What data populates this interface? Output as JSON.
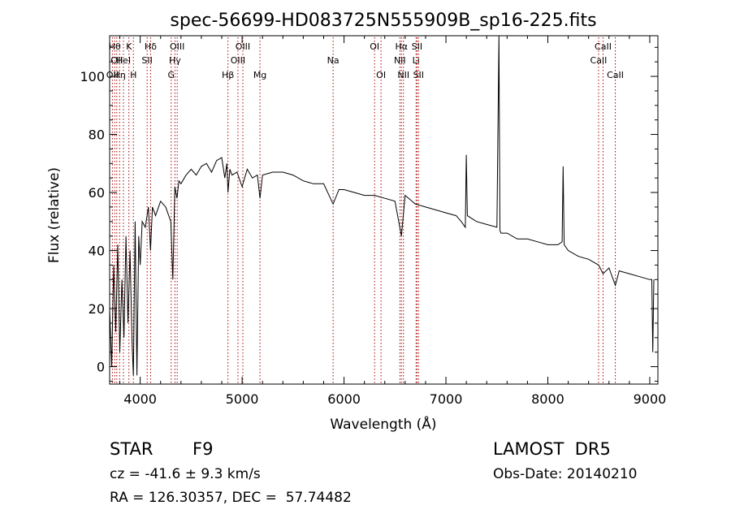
{
  "chart_data": {
    "type": "line",
    "title": "spec-56699-HD083725N555909B_sp16-225.fits",
    "xlabel": "Wavelength (Å)",
    "ylabel": "Flux (relative)",
    "xlim": [
      3700,
      9080
    ],
    "ylim": [
      -6,
      114
    ],
    "xticks": [
      4000,
      5000,
      6000,
      7000,
      8000,
      9000
    ],
    "yticks": [
      0,
      20,
      40,
      60,
      80,
      100
    ],
    "grid": false,
    "series": [
      {
        "x": [
          3700,
          3720,
          3740,
          3760,
          3780,
          3800,
          3820,
          3840,
          3860,
          3880,
          3900,
          3920,
          3933,
          3950,
          3968,
          3985,
          4000,
          4020,
          4050,
          4080,
          4101,
          4120,
          4150,
          4200,
          4250,
          4300,
          4320,
          4340,
          4361,
          4380,
          4400,
          4450,
          4500,
          4550,
          4600,
          4650,
          4700,
          4750,
          4800,
          4830,
          4850,
          4861,
          4880,
          4900,
          4950,
          5000,
          5050,
          5100,
          5150,
          5175,
          5200,
          5300,
          5400,
          5500,
          5600,
          5700,
          5800,
          5893,
          5950,
          6000,
          6100,
          6200,
          6300,
          6400,
          6500,
          6563,
          6600,
          6700,
          6800,
          6900,
          7000,
          7100,
          7150,
          7190,
          7200,
          7210,
          7300,
          7400,
          7500,
          7520,
          7530,
          7540,
          7600,
          7700,
          7800,
          7900,
          8000,
          8100,
          8140,
          8150,
          8160,
          8200,
          8300,
          8400,
          8498,
          8542,
          8600,
          8662,
          8700,
          8800,
          8900,
          9000,
          9020,
          9030,
          9040
        ],
        "y": [
          20,
          0,
          35,
          12,
          42,
          5,
          30,
          10,
          45,
          15,
          40,
          8,
          -3,
          50,
          -3,
          45,
          35,
          50,
          48,
          55,
          40,
          55,
          52,
          57,
          55,
          50,
          30,
          62,
          58,
          64,
          63,
          66,
          68,
          66,
          69,
          70,
          67,
          71,
          72,
          65,
          70,
          60,
          68,
          66,
          67,
          62,
          68,
          65,
          66,
          58,
          66,
          67,
          67,
          66,
          64,
          63,
          63,
          56,
          61,
          61,
          60,
          59,
          59,
          58,
          57,
          45,
          59,
          56,
          55,
          54,
          53,
          52,
          50,
          48,
          73,
          52,
          50,
          49,
          48,
          115,
          47,
          46,
          46,
          44,
          44,
          43,
          42,
          42,
          43,
          69,
          42,
          40,
          38,
          37,
          35,
          32,
          34,
          28,
          33,
          32,
          31,
          30,
          30,
          5,
          30
        ]
      }
    ],
    "lines": [
      {
        "x": 3750,
        "label": "Hθ",
        "row": 0
      },
      {
        "x": 3770,
        "label": "OII",
        "row": 1
      },
      {
        "x": 3727,
        "label": "OII",
        "row": 2
      },
      {
        "x": 3798,
        "label": "Hη",
        "row": 2
      },
      {
        "x": 3835,
        "label": "HeI",
        "row": 1
      },
      {
        "x": 3889,
        "label": "K",
        "row": 0
      },
      {
        "x": 3933,
        "label": "H",
        "row": 2
      },
      {
        "x": 4068,
        "label": "SII",
        "row": 1
      },
      {
        "x": 4102,
        "label": "Hδ",
        "row": 0
      },
      {
        "x": 4304,
        "label": "G",
        "row": 2
      },
      {
        "x": 4341,
        "label": "Hγ",
        "row": 1
      },
      {
        "x": 4363,
        "label": "OIII",
        "row": 0
      },
      {
        "x": 4861,
        "label": "Hβ",
        "row": 2
      },
      {
        "x": 4959,
        "label": "OIII",
        "row": 1
      },
      {
        "x": 5007,
        "label": "OIII",
        "row": 0
      },
      {
        "x": 5175,
        "label": "Mg",
        "row": 2
      },
      {
        "x": 5893,
        "label": "Na",
        "row": 1
      },
      {
        "x": 6300,
        "label": "OI",
        "row": 0
      },
      {
        "x": 6363,
        "label": "OI",
        "row": 2
      },
      {
        "x": 6548,
        "label": "NII",
        "row": 1
      },
      {
        "x": 6563,
        "label": "Hα",
        "row": 0
      },
      {
        "x": 6583,
        "label": "NII",
        "row": 2
      },
      {
        "x": 6707,
        "label": "Li",
        "row": 1
      },
      {
        "x": 6716,
        "label": "SII",
        "row": 0
      },
      {
        "x": 6731,
        "label": "SII",
        "row": 2
      },
      {
        "x": 8498,
        "label": "CaII",
        "row": 1
      },
      {
        "x": 8542,
        "label": "CaII",
        "row": 0
      },
      {
        "x": 8662,
        "label": "CaII",
        "row": 2
      }
    ]
  },
  "info": {
    "object_class": "STAR",
    "subclass": "F9",
    "survey": "LAMOST  DR5",
    "cz": "cz = -41.6 ± 9.3 km/s",
    "obs_date": "Obs-Date: 20140210",
    "coords": "RA = 126.30357, DEC =  57.74482"
  },
  "colors": {
    "spectrum": "#000000",
    "line_markers": "#aa0000",
    "background": "#ffffff"
  }
}
